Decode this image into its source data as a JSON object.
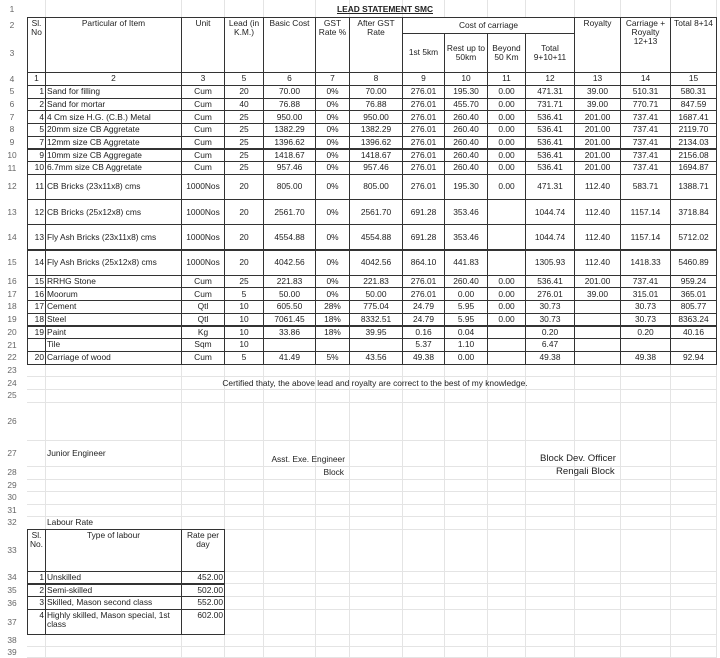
{
  "title": "LEAD STATEMENT SMC",
  "row_numbers": [
    1,
    2,
    3,
    4,
    5,
    6,
    7,
    8,
    9,
    10,
    11,
    12,
    13,
    14,
    15,
    16,
    17,
    18,
    19,
    20,
    21,
    22,
    23,
    24,
    25,
    26,
    27,
    28,
    29,
    30,
    31,
    32,
    33,
    34,
    35,
    36,
    37,
    38,
    39
  ],
  "header": {
    "sl_no": "Sl. No",
    "particular": "Particular of Item",
    "unit": "Unit",
    "lead": "Lead (in K.M.)",
    "basic_cost": "Basic Cost",
    "gst_rate": "GST Rate %",
    "after_gst": "After GST Rate",
    "cost_of_carriage": "Cost of carriage",
    "first_5km": "1st 5km",
    "rest_50km": "Rest up to 50km",
    "beyond_50km": "Beyond 50 Km",
    "total_carriage": "Total 9+10+11",
    "royalty": "Royalty",
    "carriage_royalty": "Carriage + Royalty 12+13",
    "total": "Total 8+14"
  },
  "column_numbers": [
    "1",
    "2",
    "3",
    "5",
    "6",
    "7",
    "8",
    "9",
    "10",
    "11",
    "12",
    "13",
    "14",
    "15"
  ],
  "rows": [
    [
      "1",
      "Sand for filling",
      "Cum",
      "20",
      "70.00",
      "0%",
      "70.00",
      "276.01",
      "195.30",
      "0.00",
      "471.31",
      "39.00",
      "510.31",
      "580.31"
    ],
    [
      "2",
      "Sand for mortar",
      "Cum",
      "40",
      "76.88",
      "0%",
      "76.88",
      "276.01",
      "455.70",
      "0.00",
      "731.71",
      "39.00",
      "770.71",
      "847.59"
    ],
    [
      "4",
      "4 Cm size H.G. (C.B.) Metal",
      "Cum",
      "25",
      "950.00",
      "0%",
      "950.00",
      "276.01",
      "260.40",
      "0.00",
      "536.41",
      "201.00",
      "737.41",
      "1687.41"
    ],
    [
      "5",
      "20mm size CB  Aggretate",
      "Cum",
      "25",
      "1382.29",
      "0%",
      "1382.29",
      "276.01",
      "260.40",
      "0.00",
      "536.41",
      "201.00",
      "737.41",
      "2119.70"
    ],
    [
      "7",
      "12mm size CB  Aggretate",
      "Cum",
      "25",
      "1396.62",
      "0%",
      "1396.62",
      "276.01",
      "260.40",
      "0.00",
      "536.41",
      "201.00",
      "737.41",
      "2134.03"
    ],
    [
      "9",
      "10mm size CB Aggregate",
      "Cum",
      "25",
      "1418.67",
      "0%",
      "1418.67",
      "276.01",
      "260.40",
      "0.00",
      "536.41",
      "201.00",
      "737.41",
      "2156.08"
    ],
    [
      "10",
      "6.7mm size CB Aggretate",
      "Cum",
      "25",
      "957.46",
      "0%",
      "957.46",
      "276.01",
      "260.40",
      "0.00",
      "536.41",
      "201.00",
      "737.41",
      "1694.87"
    ],
    [
      "11",
      "CB Bricks (23x11x8) cms",
      "1000Nos",
      "20",
      "805.00",
      "0%",
      "805.00",
      "276.01",
      "195.30",
      "0.00",
      "471.31",
      "112.40",
      "583.71",
      "1388.71"
    ],
    [
      "12",
      "CB Bricks (25x12x8) cms",
      "1000Nos",
      "20",
      "2561.70",
      "0%",
      "2561.70",
      "691.28",
      "353.46",
      "",
      "1044.74",
      "112.40",
      "1157.14",
      "3718.84"
    ],
    [
      "13",
      "Fly Ash Bricks (23x11x8) cms",
      "1000Nos",
      "20",
      "4554.88",
      "0%",
      "4554.88",
      "691.28",
      "353.46",
      "",
      "1044.74",
      "112.40",
      "1157.14",
      "5712.02"
    ],
    [
      "14",
      "Fly Ash Bricks (25x12x8) cms",
      "1000Nos",
      "20",
      "4042.56",
      "0%",
      "4042.56",
      "864.10",
      "441.83",
      "",
      "1305.93",
      "112.40",
      "1418.33",
      "5460.89"
    ],
    [
      "15",
      "RRHG Stone",
      "Cum",
      "25",
      "221.83",
      "0%",
      "221.83",
      "276.01",
      "260.40",
      "0.00",
      "536.41",
      "201.00",
      "737.41",
      "959.24"
    ],
    [
      "16",
      "Moorum",
      "Cum",
      "5",
      "50.00",
      "0%",
      "50.00",
      "276.01",
      "0.00",
      "0.00",
      "276.01",
      "39.00",
      "315.01",
      "365.01"
    ],
    [
      "17",
      "Cement",
      "Qtl",
      "10",
      "605.50",
      "28%",
      "775.04",
      "24.79",
      "5.95",
      "0.00",
      "30.73",
      "",
      "30.73",
      "805.77"
    ],
    [
      "18",
      "Steel",
      "Qtl",
      "10",
      "7061.45",
      "18%",
      "8332.51",
      "24.79",
      "5.95",
      "0.00",
      "30.73",
      "",
      "30.73",
      "8363.24"
    ],
    [
      "19",
      "Paint",
      "Kg",
      "10",
      "33.86",
      "18%",
      "39.95",
      "0.16",
      "0.04",
      "",
      "0.20",
      "",
      "0.20",
      "40.16"
    ],
    [
      "",
      "Tile",
      "Sqm",
      "10",
      "",
      "",
      "",
      "5.37",
      "1.10",
      "",
      "6.47",
      "",
      "",
      ""
    ],
    [
      "20",
      "Carriage of wood",
      "Cum",
      "5",
      "41.49",
      "5%",
      "43.56",
      "49.38",
      "0.00",
      "",
      "49.38",
      "",
      "49.38",
      "92.94"
    ]
  ],
  "certification": "Certified thaty, the above lead and royalty are correct to the best of my knowledge.",
  "signatures": {
    "junior_engineer": "Junior Engineer",
    "asst_exe_engineer": "Asst. Exe. Engineer",
    "asst_block": "Block",
    "bdo": "Block Dev. Officer",
    "bdo_block": "Rengali Block"
  },
  "labour": {
    "title": "Labour Rate",
    "header": {
      "sl_no": "Sl. No.",
      "type": "Type of labour",
      "rate": "Rate per day"
    },
    "rows": [
      [
        "1",
        "Unskilled",
        "452.00"
      ],
      [
        "2",
        "Semi-skilled",
        "502.00"
      ],
      [
        "3",
        "Skilled, Mason second class",
        "552.00"
      ],
      [
        "4",
        "Highly skilled, Mason special, 1st class",
        "602.00"
      ]
    ]
  }
}
